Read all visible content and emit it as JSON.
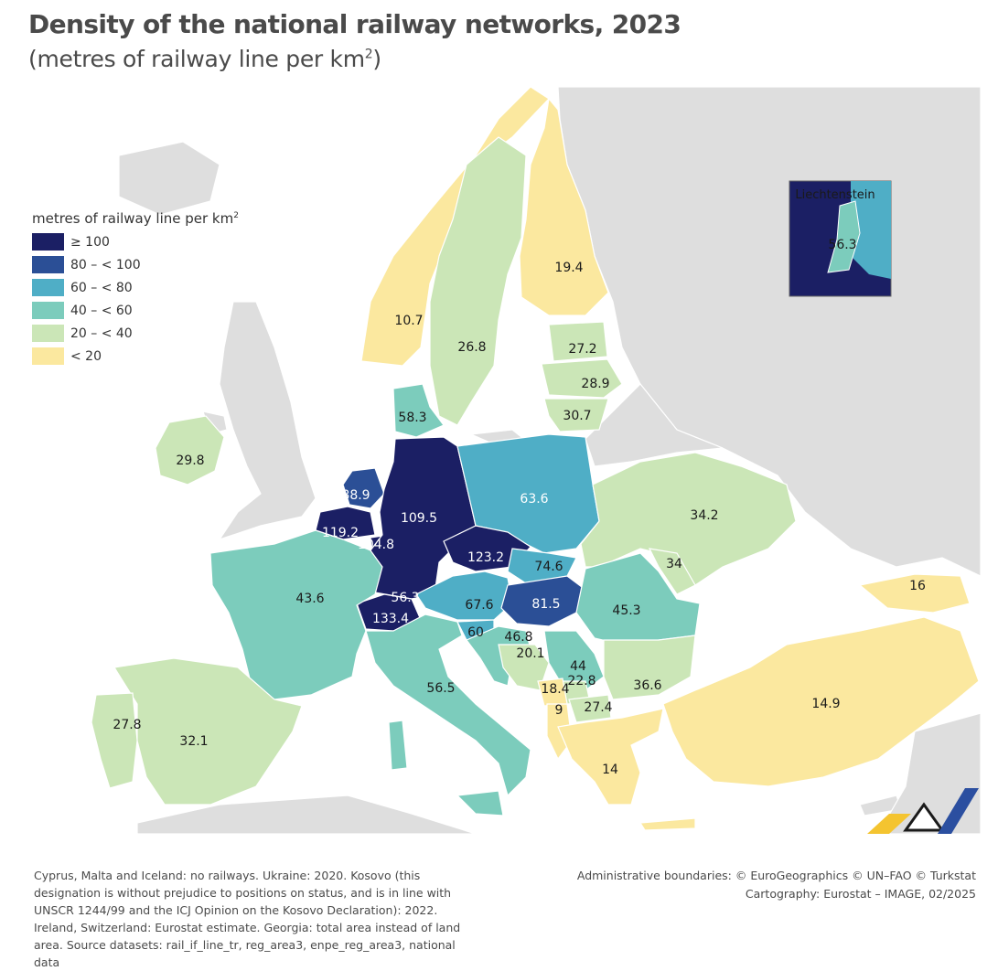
{
  "title": "Density of the national railway networks, 2023",
  "subtitle_main": "(metres of railway line per km",
  "subtitle_sup": "2",
  "subtitle_close": ")",
  "legend": {
    "title_main": "metres of railway line per km",
    "title_sup": "2",
    "items": [
      {
        "label": "≥ 100",
        "color": "#1b1f64"
      },
      {
        "label": "80 – < 100",
        "color": "#2b4f96"
      },
      {
        "label": "60 – < 80",
        "color": "#4faec6"
      },
      {
        "label": "40 – < 60",
        "color": "#7cccbc"
      },
      {
        "label": "20 – < 40",
        "color": "#cbe6b7"
      },
      {
        "label": "< 20",
        "color": "#fbe89f"
      }
    ]
  },
  "inset": {
    "title": "Liechtenstein",
    "value": "56.3"
  },
  "country_values": [
    {
      "id": "no",
      "value": "10.7"
    },
    {
      "id": "se",
      "value": "26.8"
    },
    {
      "id": "fi",
      "value": "19.4"
    },
    {
      "id": "ee",
      "value": "27.2"
    },
    {
      "id": "lv",
      "value": "28.9"
    },
    {
      "id": "lt",
      "value": "30.7"
    },
    {
      "id": "dk",
      "value": "58.3"
    },
    {
      "id": "ie",
      "value": "29.8"
    },
    {
      "id": "nl",
      "value": "88.9"
    },
    {
      "id": "de",
      "value": "109.5"
    },
    {
      "id": "pl",
      "value": "63.6"
    },
    {
      "id": "be",
      "value": "119.2"
    },
    {
      "id": "lu",
      "value": "104.8"
    },
    {
      "id": "cz",
      "value": "123.2"
    },
    {
      "id": "sk",
      "value": "74.6"
    },
    {
      "id": "ua",
      "value": "34.2"
    },
    {
      "id": "md",
      "value": "34"
    },
    {
      "id": "ge",
      "value": "16"
    },
    {
      "id": "fr",
      "value": "43.6"
    },
    {
      "id": "li",
      "value": "56.3"
    },
    {
      "id": "ch",
      "value": "133.4"
    },
    {
      "id": "at",
      "value": "67.6"
    },
    {
      "id": "hu",
      "value": "81.5"
    },
    {
      "id": "ro",
      "value": "45.3"
    },
    {
      "id": "si",
      "value": "60"
    },
    {
      "id": "hr",
      "value": "46.8"
    },
    {
      "id": "ba",
      "value": "20.1"
    },
    {
      "id": "rs",
      "value": "44"
    },
    {
      "id": "xk",
      "value": "22.8"
    },
    {
      "id": "me",
      "value": "18.4"
    },
    {
      "id": "al",
      "value": "9"
    },
    {
      "id": "mk",
      "value": "27.4"
    },
    {
      "id": "bg",
      "value": "36.6"
    },
    {
      "id": "tr",
      "value": "14.9"
    },
    {
      "id": "it",
      "value": "56.5"
    },
    {
      "id": "pt",
      "value": "27.8"
    },
    {
      "id": "es",
      "value": "32.1"
    },
    {
      "id": "el",
      "value": "14"
    }
  ],
  "footnote": "Cyprus, Malta and Iceland: no railways. Ukraine: 2020. Kosovo (this designation is without prejudice to positions on status, and is in line with UNSCR 1244/99 and the ICJ Opinion on the Kosovo Declaration): 2022. Ireland, Switzerland: Eurostat estimate. Georgia: total area instead of land area. Source datasets: rail_if_line_tr, reg_area3, enpe_reg_area3, national data",
  "credits_line1": "Administrative boundaries: © EuroGeographics © UN–FAO © Turkstat",
  "credits_line2": "Cartography: Eurostat – IMAGE, 02/2025",
  "colors": {
    "sea": "#ffffff",
    "land_nodata": "#dedede",
    "border": "#ffffff"
  }
}
